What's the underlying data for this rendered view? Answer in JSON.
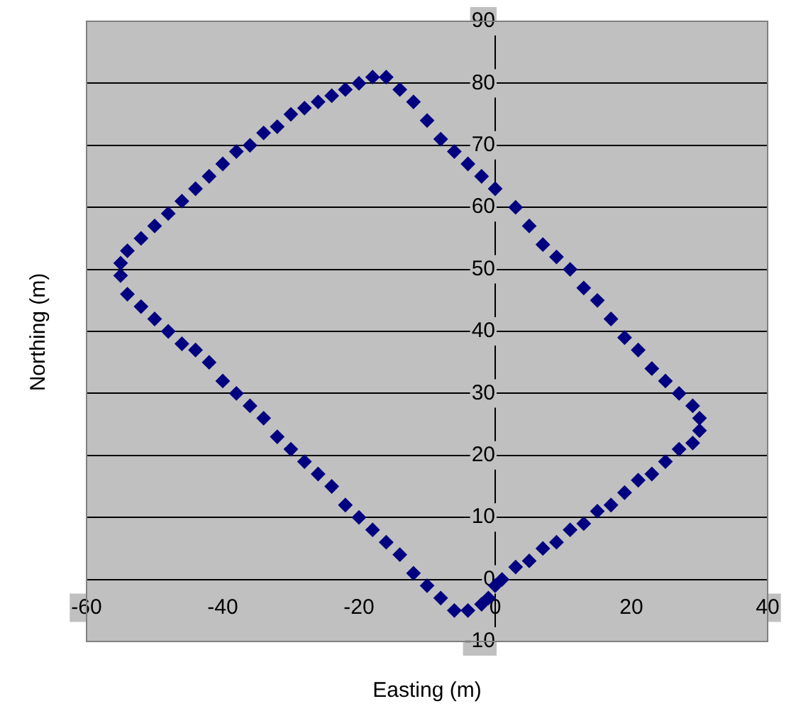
{
  "chart_data": {
    "type": "scatter",
    "xlabel": "Easting (m)",
    "ylabel": "Northing (m)",
    "xlim": [
      -60,
      40
    ],
    "xticks": [
      -60,
      -40,
      -20,
      0,
      20,
      40
    ],
    "ylim": [
      -10,
      90
    ],
    "yticks": [
      -10,
      0,
      10,
      20,
      30,
      40,
      50,
      60,
      70,
      80,
      90
    ],
    "grid": "y",
    "legend": false,
    "marker": "diamond",
    "series": [
      {
        "color": "#000080",
        "x": [
          -16,
          -14,
          -12,
          -10,
          -8,
          -6,
          -4,
          -2,
          0,
          3,
          5,
          7,
          9,
          11,
          13,
          15,
          17,
          19,
          21,
          23,
          25,
          27,
          29,
          30,
          30,
          29,
          27,
          25,
          23,
          21,
          19,
          17,
          15,
          13,
          11,
          9,
          7,
          5,
          3,
          1,
          0,
          -1,
          -2,
          -4,
          -6,
          -8,
          -10,
          -12,
          -14,
          -16,
          -18,
          -20,
          -22,
          -24,
          -26,
          -28,
          -30,
          -32,
          -34,
          -36,
          -38,
          -40,
          -42,
          -44,
          -46,
          -48,
          -50,
          -52,
          -54,
          -55,
          -55,
          -54,
          -52,
          -50,
          -48,
          -46,
          -44,
          -42,
          -40,
          -38,
          -36,
          -34,
          -32,
          -30,
          -28,
          -26,
          -24,
          -22,
          -20,
          -18
        ],
        "values": [
          81,
          79,
          77,
          74,
          71,
          69,
          67,
          65,
          63,
          60,
          57,
          54,
          52,
          50,
          47,
          45,
          42,
          39,
          37,
          34,
          32,
          30,
          28,
          26,
          24,
          22,
          21,
          19,
          17,
          16,
          14,
          12,
          11,
          9,
          8,
          6,
          5,
          3,
          2,
          0,
          -1,
          -3,
          -4,
          -5,
          -5,
          -3,
          -1,
          1,
          4,
          6,
          8,
          10,
          12,
          15,
          17,
          19,
          21,
          23,
          26,
          28,
          30,
          32,
          35,
          37,
          38,
          40,
          42,
          44,
          46,
          49,
          51,
          53,
          55,
          57,
          59,
          61,
          63,
          65,
          67,
          69,
          70,
          72,
          73,
          75,
          76,
          77,
          78,
          79,
          80,
          81
        ]
      }
    ]
  }
}
